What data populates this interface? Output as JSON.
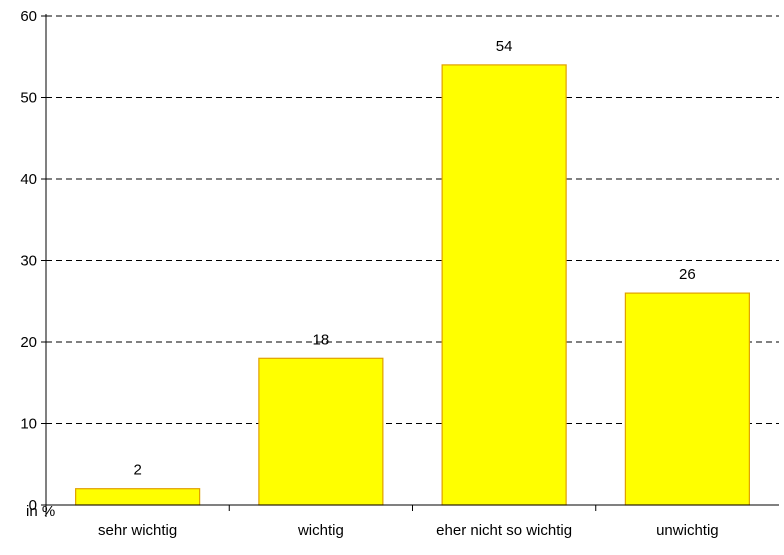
{
  "chart_data": {
    "type": "bar",
    "categories": [
      "sehr wichtig",
      "wichtig",
      "eher nicht so wichtig",
      "unwichtig"
    ],
    "values": [
      2,
      18,
      54,
      26
    ],
    "data_labels": [
      "2",
      "18",
      "54",
      "26"
    ],
    "y_ticks": [
      "0",
      "10",
      "20",
      "30",
      "40",
      "50",
      "60"
    ],
    "ylim": [
      0,
      60
    ],
    "unit_label": "in %",
    "grid": "dashed horizontal",
    "bar_color": "#ffff00",
    "bar_edge_color": "#e0a000"
  }
}
